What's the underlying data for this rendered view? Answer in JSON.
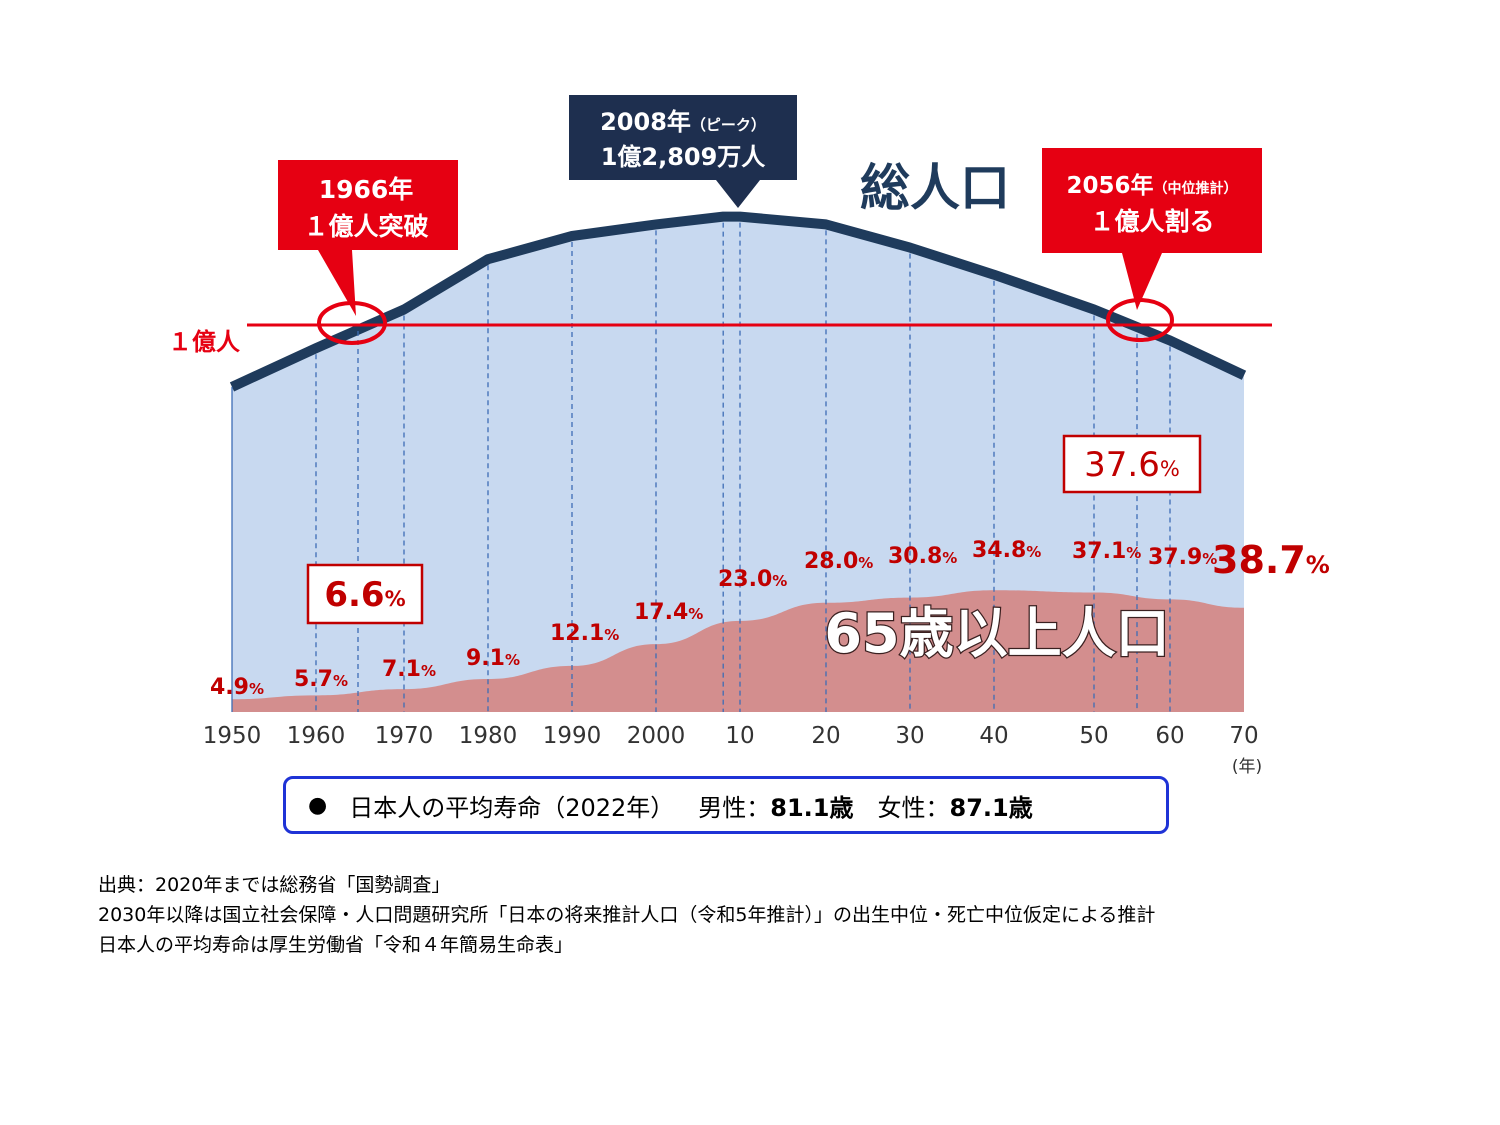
{
  "chart_data": {
    "type": "area",
    "x_tick_labels": [
      "1950",
      "1960",
      "1970",
      "1980",
      "1990",
      "2000",
      "10",
      "20",
      "30",
      "40",
      "50",
      "60",
      "70"
    ],
    "x_unit": "(年)",
    "x_years": [
      1950,
      1960,
      1966,
      1970,
      1980,
      1990,
      2000,
      2008,
      2010,
      2020,
      2030,
      2040,
      2050,
      2056,
      2060,
      2070
    ],
    "series": [
      {
        "name": "総人口",
        "color": "#1f3b5c",
        "fill": "#c8d9f0",
        "x": [
          1950,
          1960,
          1970,
          1980,
          1990,
          2000,
          2008,
          2010,
          2020,
          2030,
          2040,
          2050,
          2060,
          2070
        ],
        "values_relative_to_100M": [
          0.84,
          0.94,
          1.04,
          1.17,
          1.23,
          1.26,
          1.28,
          1.28,
          1.26,
          1.2,
          1.13,
          1.04,
          0.96,
          0.87
        ]
      },
      {
        "name": "65歳以上人口",
        "fill": "#d38e8e",
        "x": [
          1950,
          1960,
          1970,
          1980,
          1990,
          2000,
          2010,
          2020,
          2030,
          2040,
          2050,
          2060,
          2070
        ],
        "percent_labels": [
          "4.9",
          "5.7",
          "7.1",
          "9.1",
          "12.1",
          "17.4",
          "23.0",
          "28.0",
          "30.8",
          "34.8",
          "37.1",
          "37.9",
          "38.7"
        ]
      }
    ],
    "title_total": "総人口",
    "title_elderly": "65歳以上人口",
    "reference_line_label": "１億人",
    "percent_suffix": "%",
    "callouts": {
      "peak": {
        "line1": "2008年",
        "line1_small": "（ピーク）",
        "line2": "1億2,809万人"
      },
      "cross_1966": {
        "line1": "1966年",
        "line2": "１億人突破"
      },
      "cross_2056": {
        "line1": "2056年",
        "line1_small": "（中位推計）",
        "line2": "１億人割る"
      }
    },
    "boxed_percent_1966": "6.6",
    "boxed_percent_2056": "37.6",
    "colors": {
      "red": "#e60012",
      "navy": "#1f3b5c",
      "dark_red": "#c00000",
      "callout_navy": "#1e2f4f"
    }
  },
  "life_expectancy": {
    "label": "日本人の平均寿命（2022年）",
    "male_label": "男性：",
    "male_value": "81.1歳",
    "female_label": "女性：",
    "female_value": "87.1歳"
  },
  "source": {
    "line1": "出典：2020年までは総務省「国勢調査」",
    "line2": " 2030年以降は国立社会保障・人口問題研究所「日本の将来推計人口（令和5年推計）」の出生中位・死亡中位仮定による推計",
    "line3": "日本人の平均寿命は厚生労働省「令和４年簡易生命表」"
  }
}
